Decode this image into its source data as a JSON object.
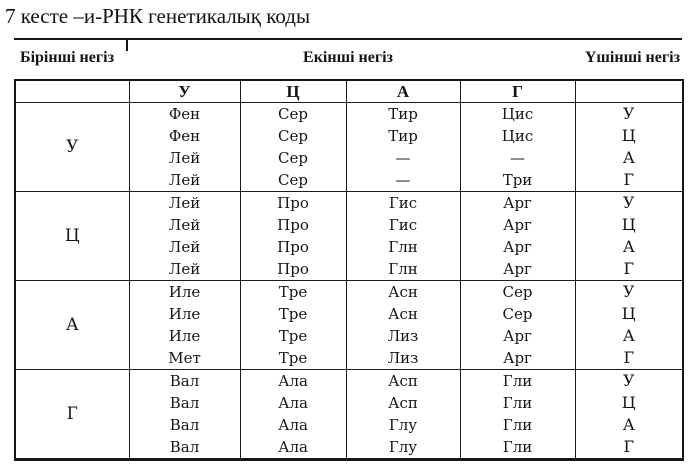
{
  "page": {
    "title": "7 кесте –и-РНК генетикалық коды"
  },
  "table": {
    "header": {
      "first": "Бірінші негіз",
      "second": "Екінші негіз",
      "third": "Үшінші негіз"
    },
    "second_base_columns": [
      "У",
      "Ц",
      "А",
      "Г"
    ],
    "groups": [
      {
        "first_base": "У",
        "rows": [
          {
            "cells": [
              "Фен",
              "Сер",
              "Тир",
              "Цис"
            ],
            "third_base": "У"
          },
          {
            "cells": [
              "Фен",
              "Сер",
              "Тир",
              "Цис"
            ],
            "third_base": "Ц"
          },
          {
            "cells": [
              "Лей",
              "Сер",
              "—",
              "—"
            ],
            "third_base": "А"
          },
          {
            "cells": [
              "Лей",
              "Сер",
              "—",
              "Три"
            ],
            "third_base": "Г"
          }
        ]
      },
      {
        "first_base": "Ц",
        "rows": [
          {
            "cells": [
              "Лей",
              "Про",
              "Гис",
              "Арг"
            ],
            "third_base": "У"
          },
          {
            "cells": [
              "Лей",
              "Про",
              "Гис",
              "Арг"
            ],
            "third_base": "Ц"
          },
          {
            "cells": [
              "Лей",
              "Про",
              "Глн",
              "Арг"
            ],
            "third_base": "А"
          },
          {
            "cells": [
              "Лей",
              "Про",
              "Глн",
              "Арг"
            ],
            "third_base": "Г"
          }
        ]
      },
      {
        "first_base": "А",
        "rows": [
          {
            "cells": [
              "Иле",
              "Тре",
              "Асн",
              "Сер"
            ],
            "third_base": "У"
          },
          {
            "cells": [
              "Иле",
              "Тре",
              "Асн",
              "Сер"
            ],
            "third_base": "Ц"
          },
          {
            "cells": [
              "Иле",
              "Тре",
              "Лиз",
              "Арг"
            ],
            "third_base": "А"
          },
          {
            "cells": [
              "Мет",
              "Тре",
              "Лиз",
              "Арг"
            ],
            "third_base": "Г"
          }
        ]
      },
      {
        "first_base": "Г",
        "rows": [
          {
            "cells": [
              "Вал",
              "Ала",
              "Асп",
              "Гли"
            ],
            "third_base": "У"
          },
          {
            "cells": [
              "Вал",
              "Ала",
              "Асп",
              "Гли"
            ],
            "third_base": "Ц"
          },
          {
            "cells": [
              "Вал",
              "Ала",
              "Глу",
              "Гли"
            ],
            "third_base": "А"
          },
          {
            "cells": [
              "Вал",
              "Ала",
              "Глу",
              "Гли"
            ],
            "third_base": "Г"
          }
        ]
      }
    ]
  },
  "colors": {
    "ink": "#161616",
    "paper": "#ffffff"
  }
}
